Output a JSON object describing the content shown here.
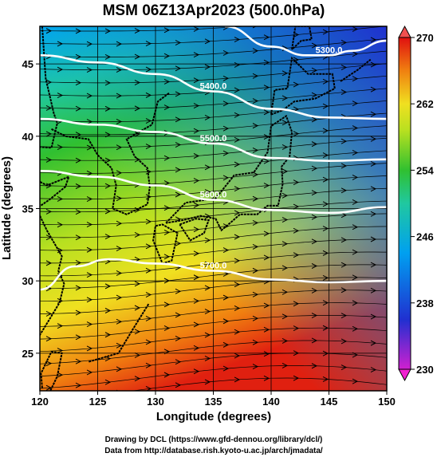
{
  "chart_data": {
    "type": "heatmap",
    "title": "MSM 06Z13Apr2023 (500.0hPa)",
    "xlabel": "Longitude (degrees)",
    "ylabel": "Latitude  (degrees)",
    "xlim": [
      120,
      150
    ],
    "ylim": [
      22.4,
      47.6
    ],
    "x_ticks": [
      120,
      125,
      130,
      135,
      140,
      145,
      150
    ],
    "y_ticks": [
      25,
      30,
      35,
      40,
      45
    ],
    "colorbar": {
      "min": 230,
      "max": 270,
      "ticks": [
        230,
        238,
        246,
        254,
        262,
        270
      ],
      "colors": [
        "#d020d0",
        "#2030d0",
        "#00a0f0",
        "#20c8a0",
        "#30c030",
        "#b8e020",
        "#f0e020",
        "#f08010",
        "#e01010"
      ]
    },
    "temperature_field": [
      {
        "lat": 47.6,
        "lon": 120,
        "value": 251
      },
      {
        "lat": 47.6,
        "lon": 135,
        "value": 246
      },
      {
        "lat": 47.6,
        "lon": 150,
        "value": 238
      },
      {
        "lat": 42,
        "lon": 135,
        "value": 248
      },
      {
        "lat": 36,
        "lon": 135,
        "value": 254
      },
      {
        "lat": 32,
        "lon": 135,
        "value": 258
      },
      {
        "lat": 27,
        "lon": 135,
        "value": 264
      },
      {
        "lat": 22.4,
        "lon": 120,
        "value": 268
      },
      {
        "lat": 22.4,
        "lon": 150,
        "value": 264
      }
    ],
    "height_contours": [
      {
        "label": "5300.0",
        "points": [
          [
            136,
            47.6
          ],
          [
            140,
            46.2
          ],
          [
            143,
            45.6
          ],
          [
            145,
            45.6
          ],
          [
            147,
            45.9
          ],
          [
            150,
            46.6
          ]
        ]
      },
      {
        "label": "5400.0",
        "points": [
          [
            120,
            45.6
          ],
          [
            125,
            45.1
          ],
          [
            130,
            44.3
          ],
          [
            135,
            43.1
          ],
          [
            140,
            41.9
          ],
          [
            145,
            41.3
          ],
          [
            150,
            41.2
          ]
        ]
      },
      {
        "label": "5500.0",
        "points": [
          [
            120,
            41.2
          ],
          [
            125,
            40.8
          ],
          [
            130,
            40.3
          ],
          [
            135,
            39.5
          ],
          [
            140,
            38.5
          ],
          [
            145,
            38.3
          ],
          [
            150,
            38.4
          ]
        ]
      },
      {
        "label": "5600.0",
        "points": [
          [
            120,
            37.6
          ],
          [
            125,
            37.2
          ],
          [
            130,
            36.6
          ],
          [
            135,
            35.6
          ],
          [
            140,
            34.9
          ],
          [
            145,
            34.7
          ],
          [
            150,
            35.1
          ]
        ]
      },
      {
        "label": "5700.0",
        "points": [
          [
            120,
            29.4
          ],
          [
            123,
            31.0
          ],
          [
            126,
            31.5
          ],
          [
            130,
            31.2
          ],
          [
            135,
            30.7
          ],
          [
            140,
            30.1
          ],
          [
            145,
            29.9
          ],
          [
            150,
            30.0
          ]
        ]
      }
    ],
    "grid": true
  },
  "credits": {
    "line1": "Drawing by DCL (https://www.gfd-dennou.org/library/dcl/)",
    "line2": "Data from http://database.rish.kyoto-u.ac.jp/arch/jmadata/"
  }
}
